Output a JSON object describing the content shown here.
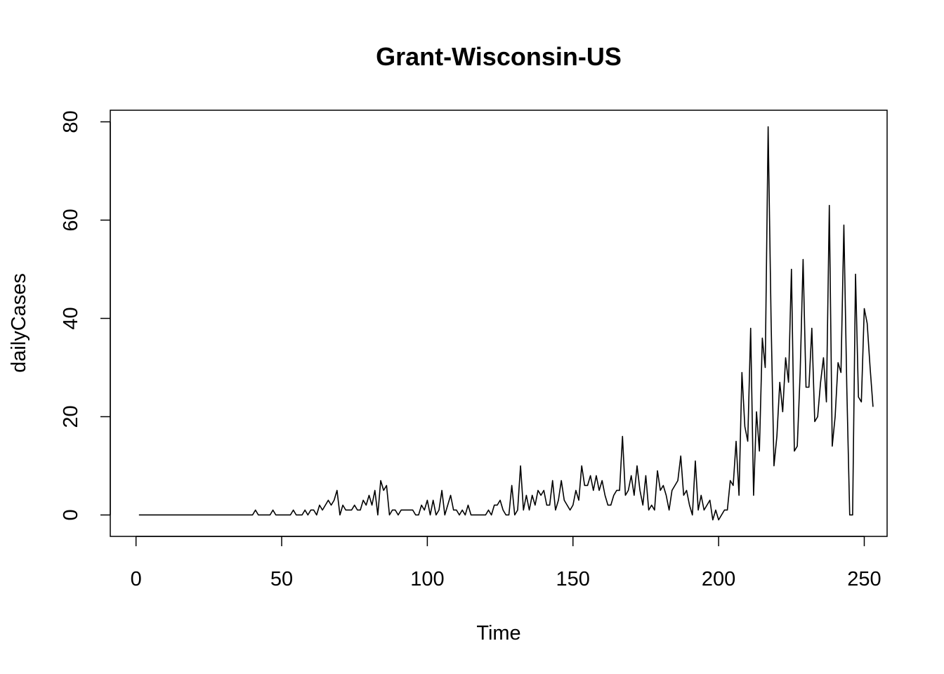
{
  "chart_data": {
    "type": "line",
    "title": "Grant-Wisconsin-US",
    "xlabel": "Time",
    "ylabel": "dailyCases",
    "xlim": [
      -8.84,
      257.84
    ],
    "ylim": [
      -4.36,
      82.36
    ],
    "x_ticks": [
      0,
      50,
      100,
      150,
      200,
      250
    ],
    "y_ticks": [
      0,
      20,
      40,
      60,
      80
    ],
    "grid": false,
    "legend": "none",
    "series": [
      {
        "color": "#000000",
        "x_start": 1,
        "x_step": 1,
        "values": [
          0,
          0,
          0,
          0,
          0,
          0,
          0,
          0,
          0,
          0,
          0,
          0,
          0,
          0,
          0,
          0,
          0,
          0,
          0,
          0,
          0,
          0,
          0,
          0,
          0,
          0,
          0,
          0,
          0,
          0,
          0,
          0,
          0,
          0,
          0,
          0,
          0,
          0,
          0,
          0,
          1,
          0,
          0,
          0,
          0,
          0,
          1,
          0,
          0,
          0,
          0,
          0,
          0,
          1,
          0,
          0,
          0,
          1,
          0,
          1,
          1,
          0,
          2,
          1,
          2,
          3,
          2,
          3,
          5,
          0,
          2,
          1,
          1,
          1,
          2,
          1,
          1,
          3,
          2,
          4,
          2,
          5,
          0,
          7,
          5,
          6,
          0,
          1,
          1,
          0,
          1,
          1,
          1,
          1,
          1,
          0,
          0,
          2,
          1,
          3,
          0,
          3,
          0,
          1,
          5,
          0,
          2,
          4,
          1,
          1,
          0,
          1,
          0,
          2,
          0,
          0,
          0,
          0,
          0,
          0,
          1,
          0,
          2,
          2,
          3,
          1,
          0,
          0,
          6,
          0,
          1,
          10,
          1,
          4,
          1,
          4,
          2,
          5,
          4,
          5,
          2,
          2,
          7,
          1,
          3,
          7,
          3,
          2,
          1,
          2,
          5,
          3,
          10,
          6,
          6,
          8,
          5,
          8,
          5,
          7,
          4,
          2,
          2,
          4,
          5,
          5,
          16,
          4,
          5,
          8,
          4,
          10,
          5,
          2,
          8,
          1,
          2,
          1,
          9,
          5,
          6,
          4,
          1,
          5,
          6,
          7,
          12,
          4,
          5,
          2,
          0,
          11,
          1,
          4,
          1,
          2,
          3,
          -1,
          1,
          -1,
          0,
          1,
          1,
          7,
          6,
          15,
          4,
          29,
          18,
          15,
          38,
          4,
          21,
          13,
          36,
          30,
          79,
          40,
          10,
          16,
          27,
          21,
          32,
          27,
          50,
          13,
          14,
          29,
          52,
          26,
          26,
          38,
          19,
          20,
          27,
          32,
          23,
          63,
          14,
          20,
          31,
          29,
          59,
          26,
          0,
          0,
          49,
          24,
          23,
          42,
          39,
          30,
          22
        ]
      }
    ]
  }
}
